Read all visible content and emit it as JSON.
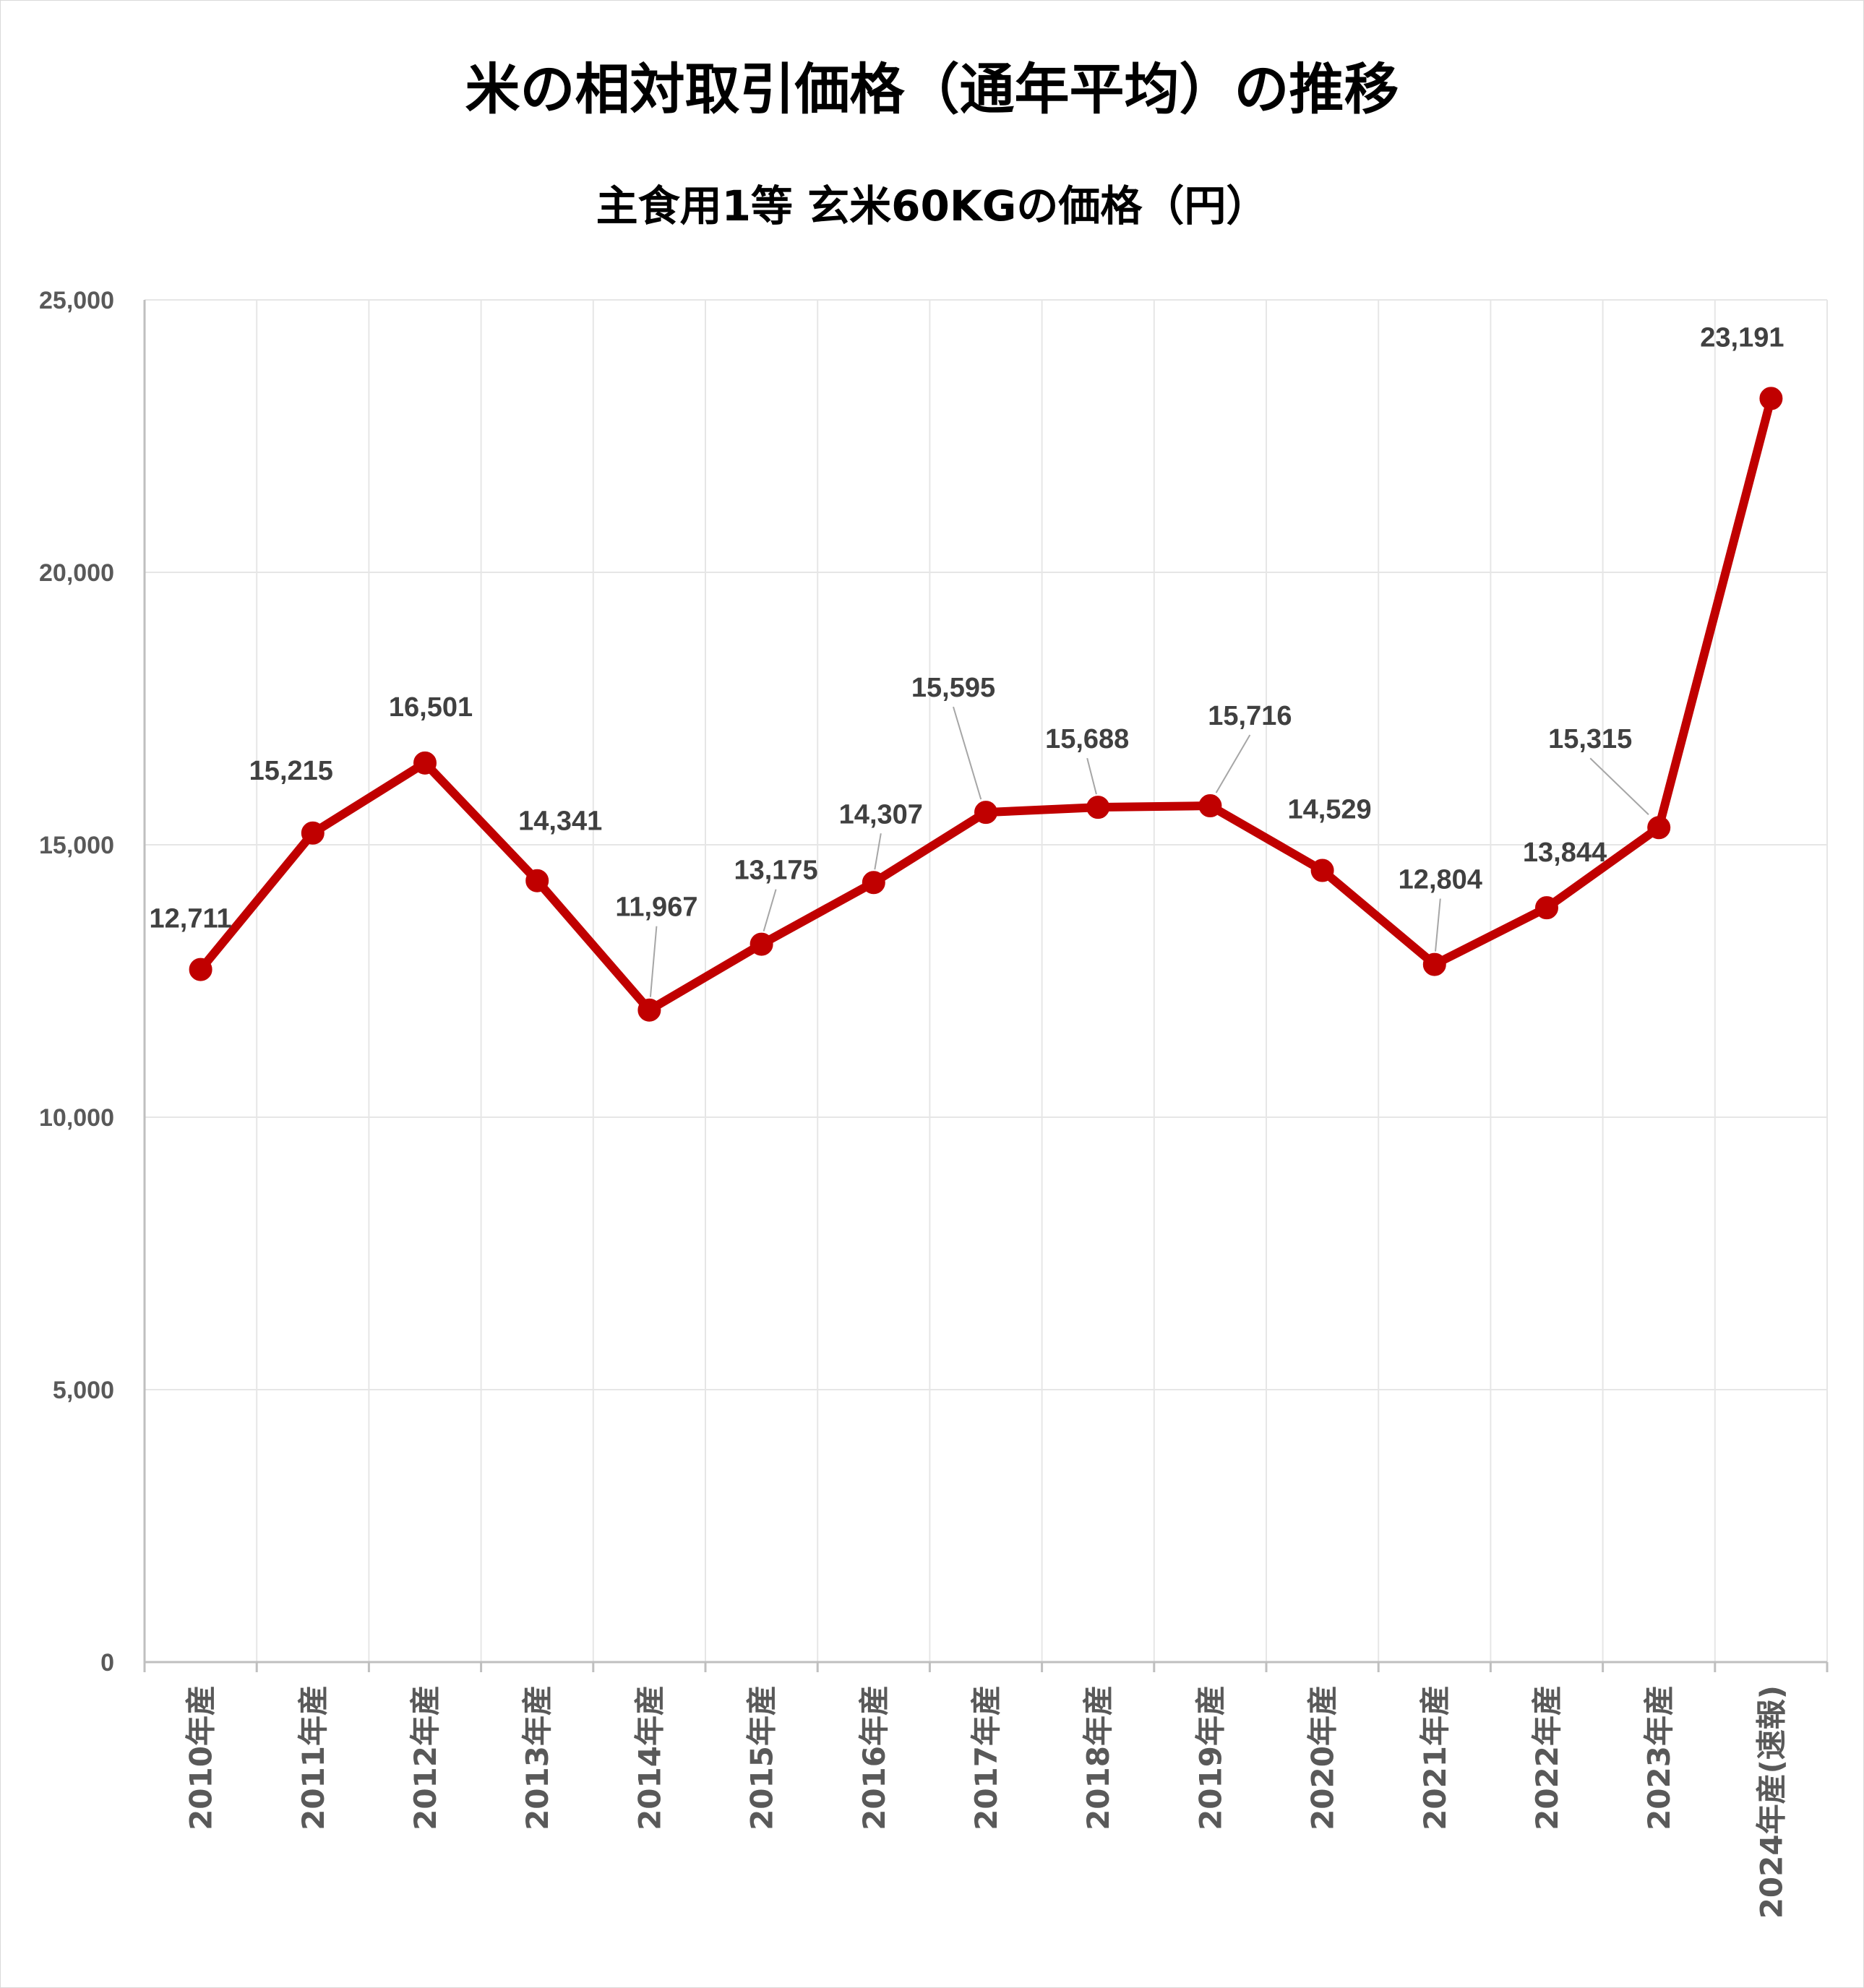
{
  "chart_data": {
    "type": "line",
    "title": "米の相対取引価格（通年平均）の推移",
    "subtitle": "主食用1等 玄米60KGの価格（円）",
    "categories": [
      "2010年産",
      "2011年産",
      "2012年産",
      "2013年産",
      "2014年産",
      "2015年産",
      "2016年産",
      "2017年産",
      "2018年産",
      "2019年産",
      "2020年産",
      "2021年産",
      "2022年産",
      "2023年産",
      "2024年産(速報)"
    ],
    "values": [
      12711,
      15215,
      16501,
      14341,
      11967,
      13175,
      14307,
      15595,
      15688,
      15716,
      14529,
      12804,
      13844,
      15315,
      23191
    ],
    "value_labels": [
      "12,711",
      "15,215",
      "16,501",
      "14,341",
      "11,967",
      "13,175",
      "14,307",
      "15,595",
      "15,688",
      "15,716",
      "14,529",
      "12,804",
      "13,844",
      "15,315",
      "23,191"
    ],
    "ylim": [
      0,
      25000
    ],
    "yticks": [
      0,
      5000,
      10000,
      15000,
      20000,
      25000
    ],
    "ytick_labels": [
      "0",
      "5,000",
      "10,000",
      "15,000",
      "20,000",
      "25,000"
    ],
    "grid": "vertical and horizontal",
    "legend": "none",
    "colors": {
      "line": "#c00000",
      "grid": "#e6e6e6",
      "axis": "#bfbfbf",
      "text": "#404040",
      "tick": "#595959"
    }
  }
}
